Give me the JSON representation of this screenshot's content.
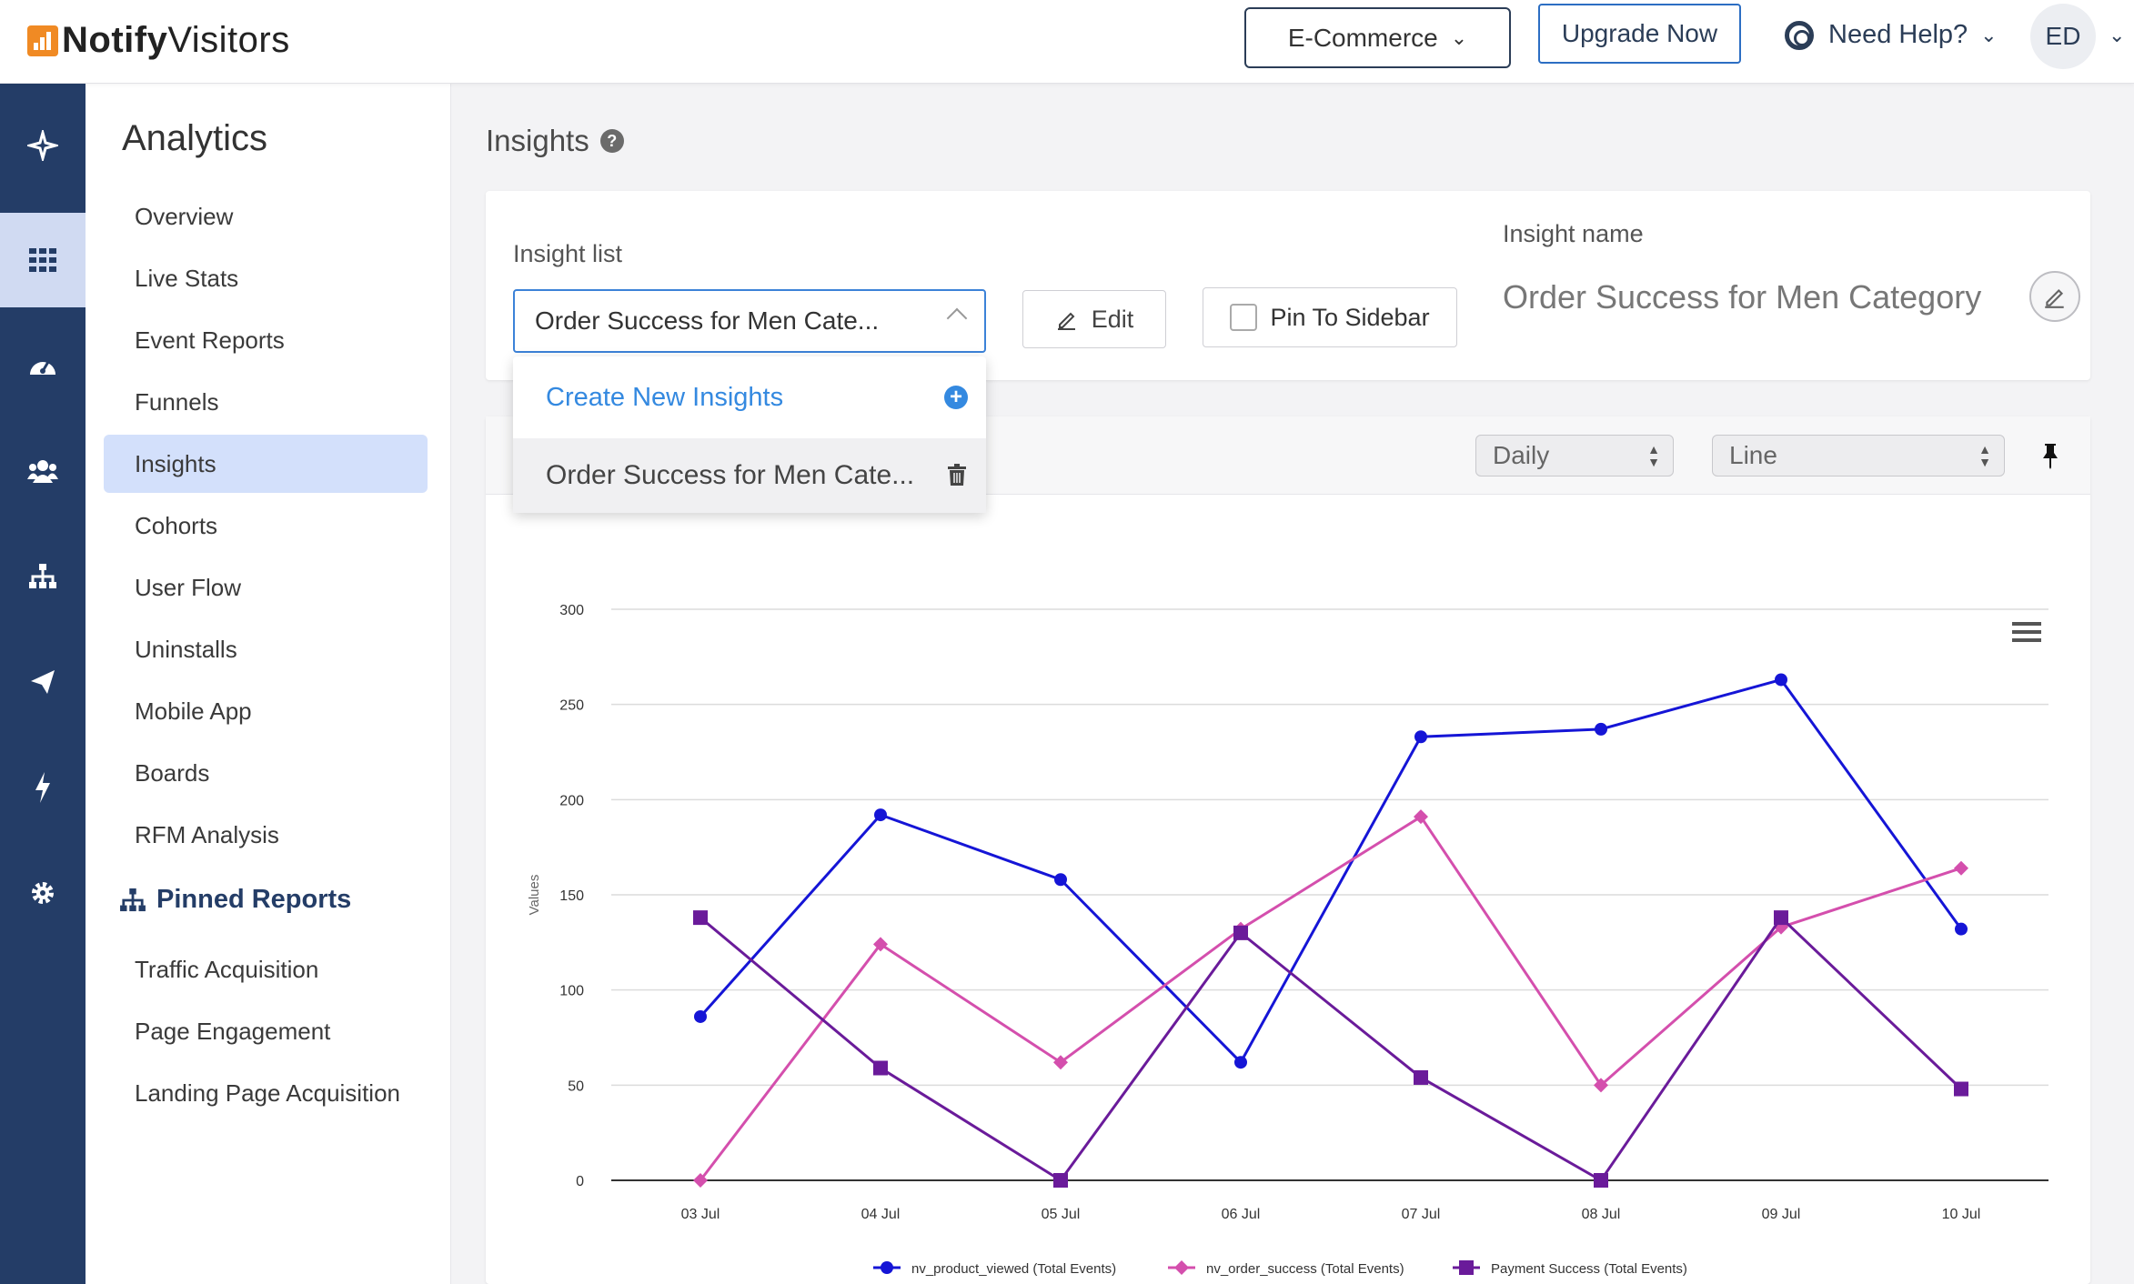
{
  "brand": {
    "name_bold": "Notify",
    "name_rest": "Visitors"
  },
  "header": {
    "workspace": "E-Commerce",
    "upgrade": "Upgrade Now",
    "help": "Need Help?",
    "avatar": "ED"
  },
  "rail": {
    "items": [
      {
        "icon": "sparkle-icon"
      },
      {
        "icon": "grid-icon",
        "active": true
      },
      {
        "icon": "dashboard-icon"
      },
      {
        "icon": "users-icon"
      },
      {
        "icon": "sitemap-icon"
      },
      {
        "icon": "send-icon"
      },
      {
        "icon": "bolt-icon"
      },
      {
        "icon": "gear-icon"
      }
    ]
  },
  "sidebar": {
    "title": "Analytics",
    "items": [
      "Overview",
      "Live Stats",
      "Event Reports",
      "Funnels",
      "Insights",
      "Cohorts",
      "User Flow",
      "Uninstalls",
      "Mobile App",
      "Boards",
      "RFM Analysis"
    ],
    "active": "Insights",
    "pinned_title": "Pinned Reports",
    "pinned_items": [
      "Traffic Acquisition",
      "Page Engagement",
      "Landing Page Acquisition"
    ]
  },
  "main": {
    "title": "Insights",
    "insight_list_label": "Insight list",
    "insight_selected": "Order Success for Men Cate...",
    "edit_label": "Edit",
    "pin_label": "Pin To Sidebar",
    "insight_name_label": "Insight name",
    "insight_name": "Order Success for Men Category",
    "dropdown": {
      "create": "Create New Insights",
      "item": "Order Success for Men Cate..."
    },
    "interval": "Daily",
    "chart_type": "Line"
  },
  "colors": {
    "rail": "#243d67",
    "accent": "#3489e0",
    "series1": "#1515d6",
    "series2": "#d44fad",
    "series3": "#6a1b9a"
  },
  "chart_data": {
    "type": "line",
    "ylabel": "Values",
    "ylim": [
      0,
      300
    ],
    "yticks": [
      0,
      50,
      100,
      150,
      200,
      250,
      300
    ],
    "categories": [
      "03 Jul",
      "04 Jul",
      "05 Jul",
      "06 Jul",
      "07 Jul",
      "08 Jul",
      "09 Jul",
      "10 Jul"
    ],
    "series": [
      {
        "name": "nv_product_viewed (Total Events)",
        "color": "#1515d6",
        "marker": "circle",
        "values": [
          86,
          192,
          158,
          62,
          233,
          237,
          263,
          132
        ]
      },
      {
        "name": "nv_order_success (Total Events)",
        "color": "#d44fad",
        "marker": "diamond",
        "values": [
          0,
          124,
          62,
          132,
          191,
          50,
          133,
          164
        ]
      },
      {
        "name": "Payment Success (Total Events)",
        "color": "#6a1b9a",
        "marker": "square",
        "values": [
          138,
          59,
          0,
          130,
          54,
          0,
          138,
          48
        ]
      }
    ],
    "grid": true,
    "legend": "bottom"
  }
}
